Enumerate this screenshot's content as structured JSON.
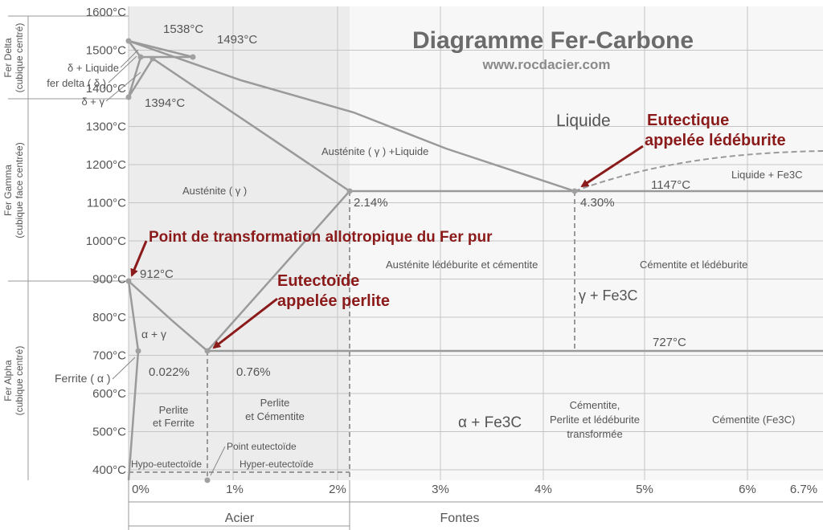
{
  "title": "Diagramme Fer-Carbone",
  "website": "www.rocdacier.com",
  "colors": {
    "curve": "#9a9a9a",
    "grid": "#bdbdbd",
    "text": "#555555",
    "annotation": "#8b1a1a",
    "title": "#6b6b6b",
    "shade": "#ececec"
  },
  "temperature_ticks": [
    "1600°C",
    "1500°C",
    "1400°C",
    "1300°C",
    "1200°C",
    "1100°C",
    "1000°C",
    "900°C",
    "800°C",
    "700°C",
    "600°C",
    "500°C",
    "400°C"
  ],
  "carbon_ticks": [
    "0%",
    "1%",
    "2%",
    "3%",
    "4%",
    "5%",
    "6%",
    "6.7%"
  ],
  "left_bands": [
    {
      "name": "Fer Delta",
      "sub": "(cubique centré)"
    },
    {
      "name": "Fer Gamma",
      "sub": "(cubique face centrée)"
    },
    {
      "name": "Fer Alpha",
      "sub": "(cubique centré)"
    }
  ],
  "bottom_bands": {
    "acier": "Acier",
    "fontes": "Fontes"
  },
  "point_labels": {
    "t1538": "1538°C",
    "t1493": "1493°C",
    "t1394": "1394°C",
    "t912": "912°C",
    "t1147": "1147°C",
    "t727": "727°C",
    "c214": "2.14%",
    "c430": "4.30%",
    "c0022": "0.022%",
    "c076": "0.76%"
  },
  "delta_labels": {
    "delta_liquide": "δ + Liquide",
    "fer_delta": "fer delta ( δ )",
    "delta_gamma": "δ + γ"
  },
  "phase_labels": {
    "liquide": "Liquide",
    "austenite_liquide": "Austénite ( γ ) +Liquide",
    "austenite": "Austénite ( γ )",
    "liquide_fe3c": "Liquide + Fe3C",
    "austenite_ledeburite": "Austénite lédéburite et cémentite",
    "cementite_ledeburite": "Cémentite et lédéburite",
    "gamma_fe3c": "γ + Fe3C",
    "alpha_gamma": "α + γ",
    "ferrite": "Ferrite ( α )",
    "perlite_ferrite_1": "Perlite",
    "perlite_ferrite_2": "et Ferrite",
    "perlite_cementite_1": "Perlite",
    "perlite_cementite_2": "et Cémentite",
    "alpha_fe3c": "α + Fe3C",
    "cementite_transf_1": "Cémentite,",
    "cementite_transf_2": "Perlite et lédéburite",
    "cementite_transf_3": "transformée",
    "cementite_fe3c": "Cémentite (Fe3C)",
    "point_eutectoide": "Point eutectoïde",
    "hypo": "Hypo-eutectoïde",
    "hyper": "Hyper-eutectoïde"
  },
  "annotations": {
    "eutectique_1": "Eutectique",
    "eutectique_2": "appelée lédéburite",
    "allotropique": "Point de transformation allotropique du Fer pur",
    "eutectoide_1": "Eutectoïde",
    "eutectoide_2": "appelée perlite"
  }
}
